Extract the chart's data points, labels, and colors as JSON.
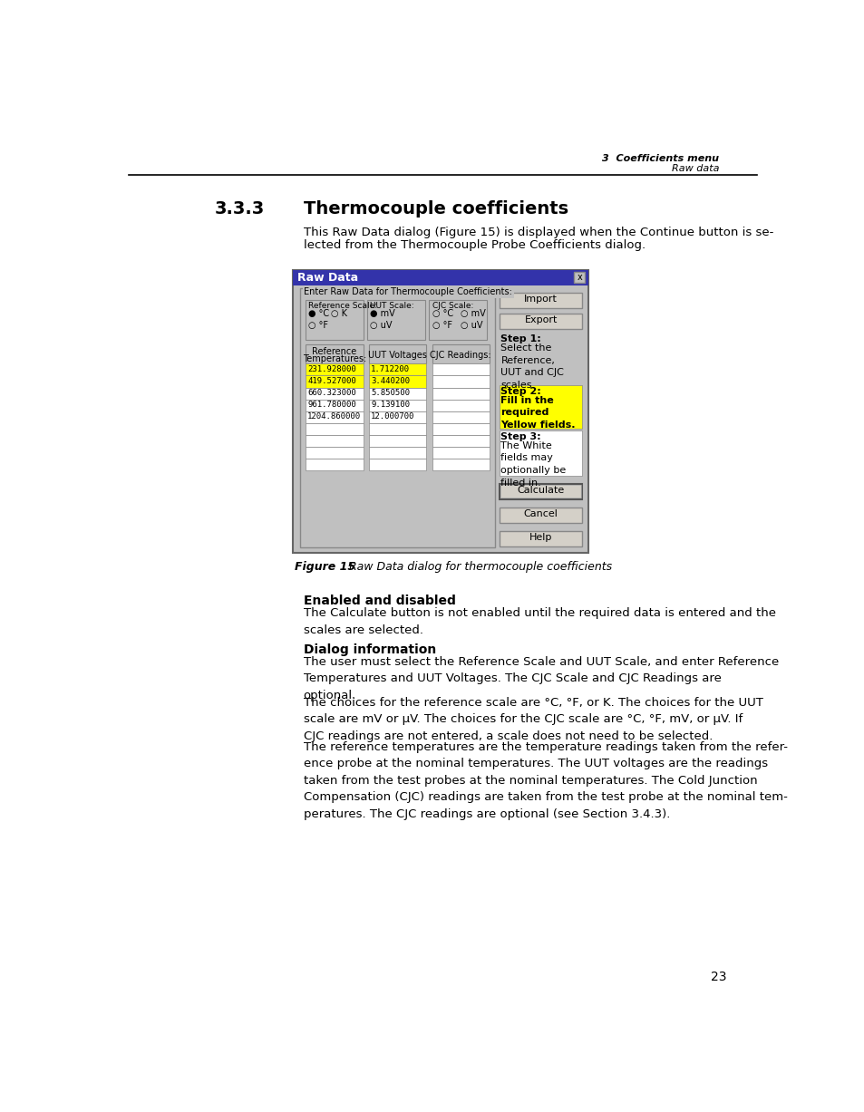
{
  "header_right_line1": "3  Coefficients menu",
  "header_right_line2": "Raw data",
  "section_number": "3.3.3",
  "section_title": "Thermocouple coefficients",
  "intro_text_line1": "This Raw Data dialog (Figure 15) is displayed when the Continue button is se-",
  "intro_text_line2": "lected from the Thermocouple Probe Coefficients dialog.",
  "dialog_title": "Raw Data",
  "dialog_bg": "#c0c0c0",
  "dialog_header_bg": "#3333aa",
  "dialog_header_text_color": "#ffffff",
  "enter_label": "Enter Raw Data for Thermocouple Coefficients:",
  "ref_scale_label": "Reference Scale:",
  "uut_scale_label": "UUT Scale:",
  "cjc_scale_label": "CJC Scale:",
  "col1_header_line1": "Reference",
  "col1_header_line2": "Temperatures:",
  "col2_header": "UUT Voltages",
  "col3_header": "CJC Readings:",
  "col1_yellow": [
    "231.928000",
    "419.527000"
  ],
  "col1_white": [
    "660.323000",
    "961.780000",
    "1204.860000",
    "",
    "",
    "",
    "",
    "",
    ""
  ],
  "col2_yellow": [
    "1.712200",
    "3.440200"
  ],
  "col2_white": [
    "5.850500",
    "9.139100",
    "12.000700",
    "",
    "",
    "",
    "",
    "",
    ""
  ],
  "step1_title": "Step 1:",
  "step1_body": "Select the\nReference,\nUUT and CJC\nscales.",
  "step2_title": "Step 2:",
  "step2_body": "Fill in the\nrequired\nYellow fields.",
  "step2_bg": "#ffff00",
  "step3_title": "Step 3:",
  "step3_body": "The White\nfields may\noptionally be\nfilled in.",
  "step3_bg": "#ffffff",
  "figure_num": "Figure 15",
  "figure_caption": "   Raw Data dialog for thermocouple coefficients",
  "sec_enabled_title": "Enabled and disabled",
  "sec_enabled_body": "The Calculate button is not enabled until the required data is entered and the\nscales are selected.",
  "sec_dialog_title": "Dialog information",
  "sec_dialog_p1": "The user must select the Reference Scale and UUT Scale, and enter Reference\nTemperatures and UUT Voltages. The CJC Scale and CJC Readings are\noptional.",
  "sec_dialog_p2": "The choices for the reference scale are °C, °F, or K. The choices for the UUT\nscale are mV or μV. The choices for the CJC scale are °C, °F, mV, or μV. If\nCJC readings are not entered, a scale does not need to be selected.",
  "sec_dialog_p3": "The reference temperatures are the temperature readings taken from the refer-\nence probe at the nominal temperatures. The UUT voltages are the readings\ntaken from the test probes at the nominal temperatures. The Cold Junction\nCompensation (CJC) readings are taken from the test probe at the nominal tem-\nperatures. The CJC readings are optional (see Section 3.4.3).",
  "page_number": "23",
  "bg_color": "#ffffff",
  "yellow": "#ffff00",
  "white": "#ffffff",
  "dialog_gray": "#c0c0c0",
  "btn_gray": "#d4d0c8"
}
